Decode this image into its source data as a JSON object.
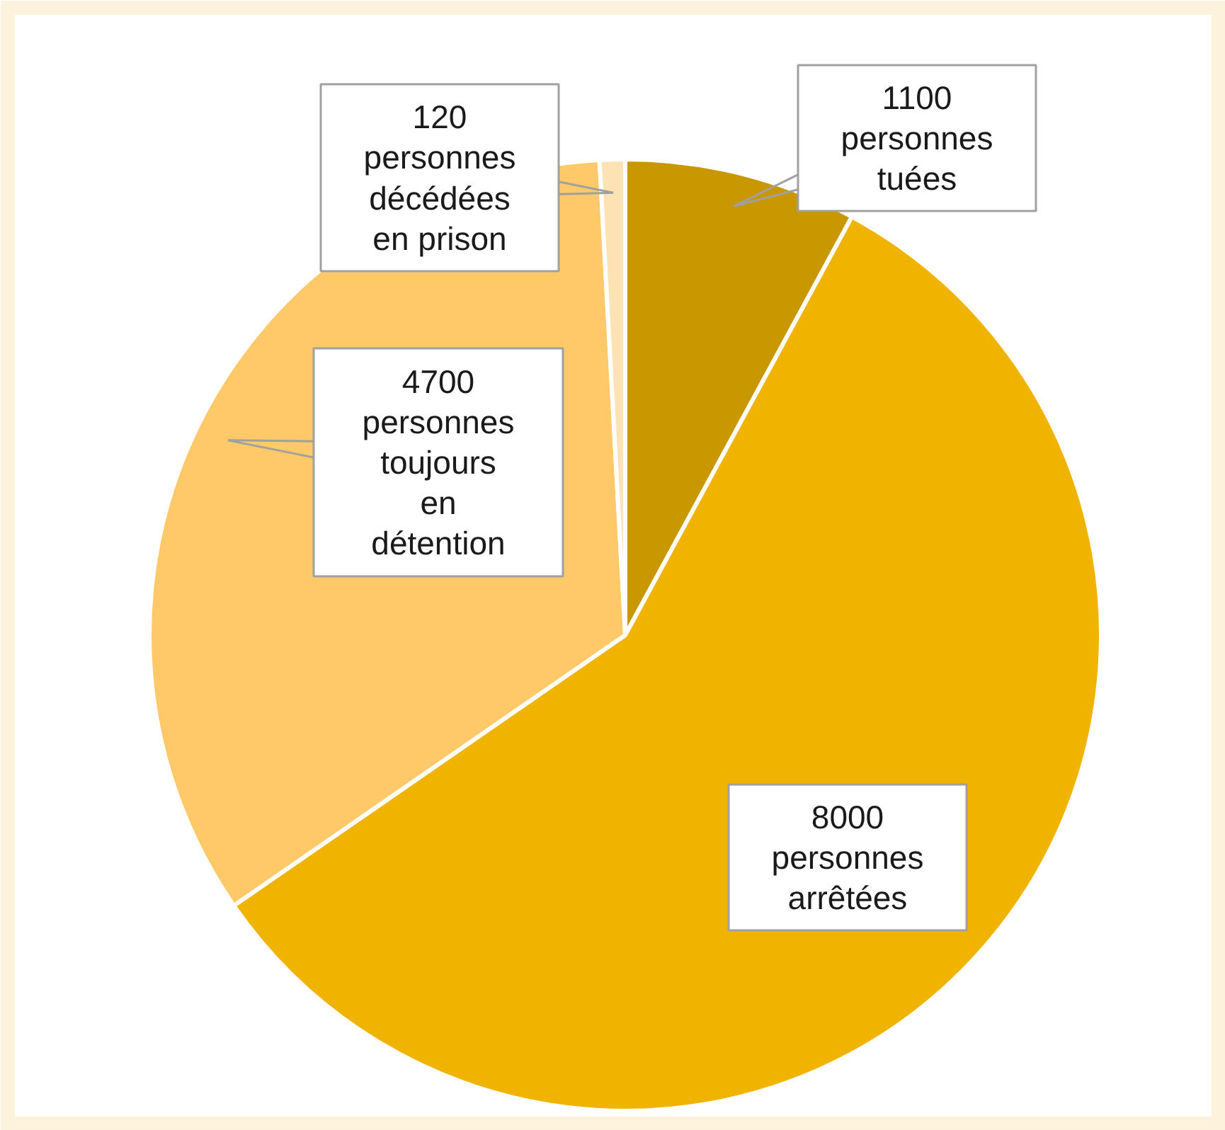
{
  "chart_data": {
    "type": "pie",
    "categories": [
      "personnes tuées",
      "personnes arrêtées",
      "personnes toujours en détention",
      "personnes décédées en prison"
    ],
    "values": [
      1100,
      8000,
      4700,
      120
    ],
    "colors": [
      "#c99700",
      "#f0b400",
      "#ffc96a",
      "#fde2b4"
    ],
    "data_labels": true
  }
}
